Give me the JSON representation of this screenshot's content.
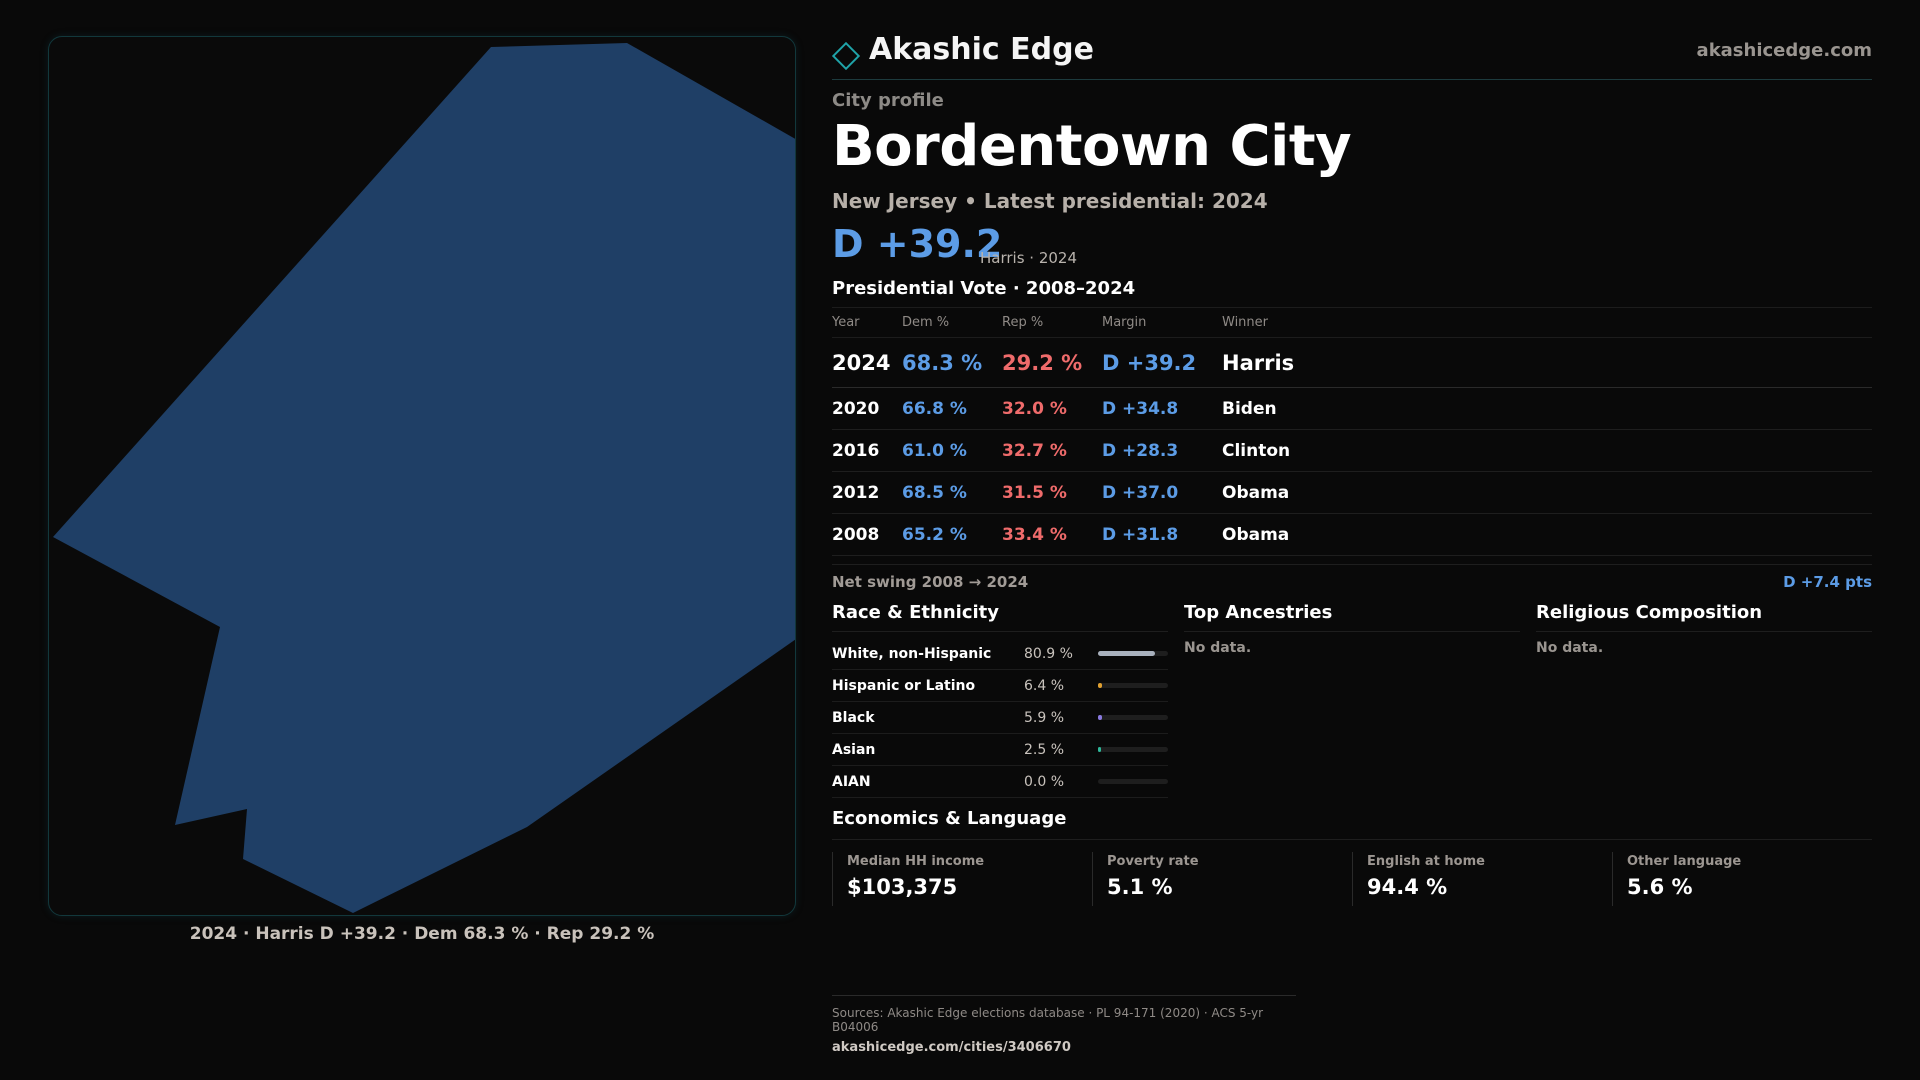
{
  "brand": {
    "name": "Akashic Edge",
    "domain": "akashicedge.com"
  },
  "profile": {
    "eyebrow": "City profile",
    "city": "Bordentown City",
    "subline": "New Jersey • Latest presidential: 2024",
    "margin": "D +39.2",
    "margin_note": "Harris · 2024"
  },
  "map": {
    "caption": "2024 · Harris D +39.2 · Dem 68.3 % · Rep 29.2 %",
    "fill_color": "#1f3f66"
  },
  "presidential": {
    "title": "Presidential Vote · 2008–2024",
    "headers": {
      "year": "Year",
      "dem": "Dem %",
      "rep": "Rep %",
      "margin": "Margin",
      "winner": "Winner"
    },
    "rows": [
      {
        "year": "2024",
        "dem": "68.3 %",
        "rep": "29.2 %",
        "margin": "D +39.2",
        "winner": "Harris"
      },
      {
        "year": "2020",
        "dem": "66.8 %",
        "rep": "32.0 %",
        "margin": "D +34.8",
        "winner": "Biden"
      },
      {
        "year": "2016",
        "dem": "61.0 %",
        "rep": "32.7 %",
        "margin": "D +28.3",
        "winner": "Clinton"
      },
      {
        "year": "2012",
        "dem": "68.5 %",
        "rep": "31.5 %",
        "margin": "D +37.0",
        "winner": "Obama"
      },
      {
        "year": "2008",
        "dem": "65.2 %",
        "rep": "33.4 %",
        "margin": "D +31.8",
        "winner": "Obama"
      }
    ],
    "swing_label": "Net swing 2008 → 2024",
    "swing_value": "D +7.4 pts"
  },
  "race": {
    "title": "Race & Ethnicity",
    "rows": [
      {
        "name": "White, non-Hispanic",
        "pct": "80.9 %",
        "value": 80.9,
        "color": "#a9b1bd"
      },
      {
        "name": "Hispanic or Latino",
        "pct": "6.4 %",
        "value": 6.4,
        "color": "#e0a030"
      },
      {
        "name": "Black",
        "pct": "5.9 %",
        "value": 5.9,
        "color": "#8a7ae0"
      },
      {
        "name": "Asian",
        "pct": "2.5 %",
        "value": 2.5,
        "color": "#2fb89a"
      },
      {
        "name": "AIAN",
        "pct": "0.0 %",
        "value": 0.0,
        "color": "#c0c0c0"
      }
    ]
  },
  "ancestries": {
    "title": "Top Ancestries",
    "empty": "No data."
  },
  "religion": {
    "title": "Religious Composition",
    "empty": "No data."
  },
  "economics": {
    "title": "Economics & Language",
    "cells": [
      {
        "label": "Median HH income",
        "value": "$103,375"
      },
      {
        "label": "Poverty rate",
        "value": "5.1 %"
      },
      {
        "label": "English at home",
        "value": "94.4 %"
      },
      {
        "label": "Other language",
        "value": "5.6 %"
      }
    ]
  },
  "footer": {
    "sources": "Sources: Akashic Edge elections database · PL 94-171 (2020) · ACS 5-yr B04006",
    "url": "akashicedge.com/cities/3406670"
  }
}
